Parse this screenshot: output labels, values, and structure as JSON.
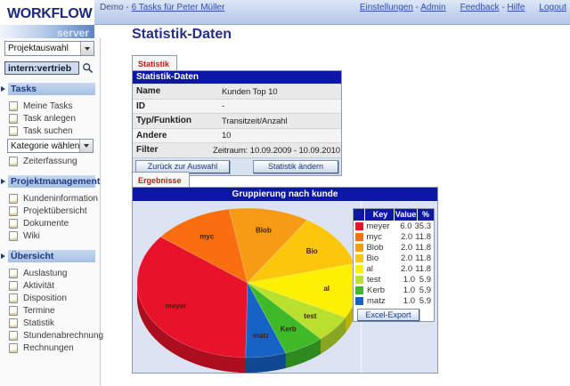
{
  "topbar": {
    "context_label": "Demo",
    "separator": "-",
    "tasks_link": "6 Tasks für Peter Müller",
    "link_groups": [
      [
        "Einstellungen",
        "Admin"
      ],
      [
        "Feedback",
        "Hilfe"
      ],
      [
        "Logout"
      ]
    ]
  },
  "logo": {
    "title": "WORKFLOW",
    "subtitle": "server"
  },
  "sidebar": {
    "project_select": "Projektauswahl",
    "search_value": "intern:vertrieb",
    "sections": [
      {
        "title": "Tasks",
        "entries": [
          {
            "type": "item",
            "label": "Meine Tasks"
          },
          {
            "type": "item",
            "label": "Task anlegen"
          },
          {
            "type": "item",
            "label": "Task suchen"
          },
          {
            "type": "select",
            "label": "Kategorie wählen"
          },
          {
            "type": "item",
            "label": "Zeiterfassung"
          }
        ]
      },
      {
        "title": "Projektmanagement",
        "entries": [
          {
            "type": "item",
            "label": "Kundeninformation"
          },
          {
            "type": "item",
            "label": "Projektübersicht"
          },
          {
            "type": "item",
            "label": "Dokumente"
          },
          {
            "type": "item",
            "label": "Wiki"
          }
        ]
      },
      {
        "title": "Übersicht",
        "entries": [
          {
            "type": "item",
            "label": "Auslastung"
          },
          {
            "type": "item",
            "label": "Aktivität"
          },
          {
            "type": "item",
            "label": "Disposition"
          },
          {
            "type": "item",
            "label": "Termine"
          },
          {
            "type": "item",
            "label": "Statistik"
          },
          {
            "type": "item",
            "label": "Stundenabrechnung"
          },
          {
            "type": "item",
            "label": "Rechnungen"
          }
        ]
      }
    ]
  },
  "main": {
    "page_title": "Statistik-Daten",
    "tab_statistik": "Statistik",
    "tab_ergebnisse": "Ergebnisse",
    "info_table": {
      "header": "Statistik-Daten",
      "rows": [
        [
          "Name",
          "Kunden Top 10"
        ],
        [
          "ID",
          "-"
        ],
        [
          "Typ/Funktion",
          "Transitzeit/Anzahl"
        ],
        [
          "Andere",
          "10"
        ],
        [
          "Filter",
          "Zeitraum: 10.09.2009 - 10.09.2010"
        ]
      ],
      "buttons": [
        "Zurück zur Auswahl",
        "Statistik ändern"
      ]
    },
    "export_button": "Excel-Export"
  },
  "chart_data": {
    "type": "pie",
    "style": "3d-pie",
    "title": "Gruppierung nach kunde",
    "legend_position": "right",
    "legend_headers": [
      "Key",
      "Value",
      "%"
    ],
    "series": [
      {
        "key": "meyer",
        "value": 6.0,
        "percent": 35.3,
        "color": "#e8132b"
      },
      {
        "key": "myc",
        "value": 2.0,
        "percent": 11.8,
        "color": "#fa6e0f"
      },
      {
        "key": "Blob",
        "value": 2.0,
        "percent": 11.8,
        "color": "#f79b15"
      },
      {
        "key": "Bio",
        "value": 2.0,
        "percent": 11.8,
        "color": "#fcc60d"
      },
      {
        "key": "al",
        "value": 2.0,
        "percent": 11.8,
        "color": "#fdf003"
      },
      {
        "key": "test",
        "value": 1.0,
        "percent": 5.9,
        "color": "#b8e02c"
      },
      {
        "key": "Kerb",
        "value": 1.0,
        "percent": 5.9,
        "color": "#3eba28"
      },
      {
        "key": "matz",
        "value": 1.0,
        "percent": 5.9,
        "color": "#1563c5"
      }
    ],
    "start_angle_deg": 91,
    "clockwise": true
  }
}
